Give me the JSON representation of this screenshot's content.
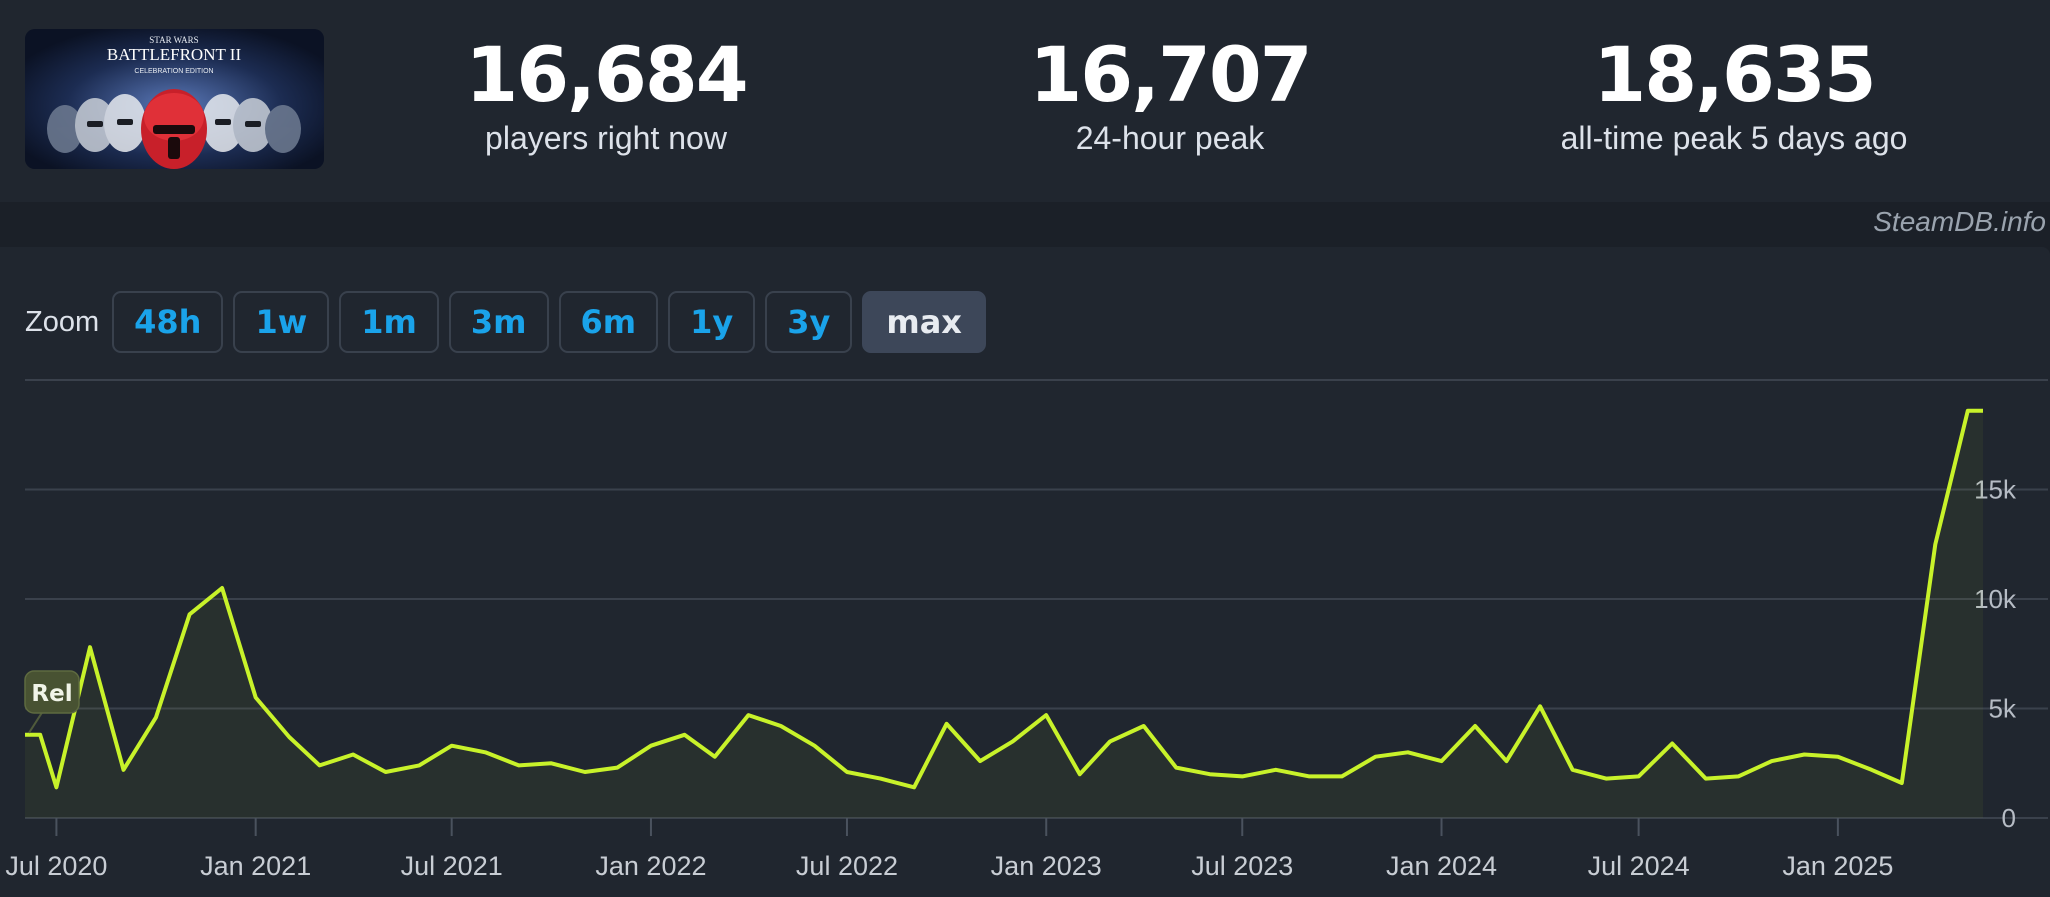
{
  "game": {
    "banner_icon": "game-cover-art",
    "banner_text_top": "STAR WARS",
    "banner_text_main": "BATTLEFRONT II",
    "banner_text_sub": "CELEBRATION EDITION"
  },
  "stats": [
    {
      "value": "16,684",
      "label": "players right now"
    },
    {
      "value": "16,707",
      "label": "24-hour peak"
    },
    {
      "value": "18,635",
      "label": "all-time peak 5 days ago"
    }
  ],
  "credit": "SteamDB.info",
  "zoom": {
    "label": "Zoom",
    "options": [
      "48h",
      "1w",
      "1m",
      "3m",
      "6m",
      "1y",
      "3y",
      "max"
    ],
    "active": "max"
  },
  "colors": {
    "line": "#c8f22a",
    "button_text": "#1aa3ea",
    "background": "#20262f"
  },
  "chart_data": {
    "type": "line",
    "x_tick_labels": [
      "Jul 2020",
      "Jan 2021",
      "Jul 2021",
      "Jan 2022",
      "Jul 2022",
      "Jan 2023",
      "Jul 2023",
      "Jan 2024",
      "Jul 2024",
      "Jan 2025"
    ],
    "y_tick_labels": [
      "0",
      "5k",
      "10k",
      "15k"
    ],
    "ylim": [
      0,
      20000
    ],
    "grid": true,
    "annotation": "Rel",
    "series": [
      {
        "x": [
          "2020-06-02",
          "2020-06-16",
          "2020-07-01",
          "2020-08-01",
          "2020-09-01",
          "2020-10-01",
          "2020-11-01",
          "2020-12-01",
          "2021-01-01",
          "2021-02-01",
          "2021-03-01",
          "2021-04-01",
          "2021-05-01",
          "2021-06-01",
          "2021-07-01",
          "2021-08-01",
          "2021-09-01",
          "2021-10-01",
          "2021-11-01",
          "2021-12-01",
          "2022-01-01",
          "2022-02-01",
          "2022-03-01",
          "2022-04-01",
          "2022-05-01",
          "2022-06-01",
          "2022-07-01",
          "2022-08-01",
          "2022-09-01",
          "2022-10-01",
          "2022-11-01",
          "2022-12-01",
          "2023-01-01",
          "2023-02-01",
          "2023-03-01",
          "2023-04-01",
          "2023-05-01",
          "2023-06-01",
          "2023-07-01",
          "2023-08-01",
          "2023-09-01",
          "2023-10-01",
          "2023-11-01",
          "2023-12-01",
          "2024-01-01",
          "2024-02-01",
          "2024-03-01",
          "2024-04-01",
          "2024-05-01",
          "2024-06-01",
          "2024-07-01",
          "2024-08-01",
          "2024-09-01",
          "2024-10-01",
          "2024-11-01",
          "2024-12-01",
          "2025-01-01",
          "2025-02-01",
          "2025-03-01",
          "2025-04-01",
          "2025-05-01",
          "2025-05-15"
        ],
        "y": [
          3800,
          3800,
          1400,
          7800,
          2200,
          4600,
          9300,
          10500,
          5500,
          3700,
          2400,
          2900,
          2100,
          2400,
          3300,
          3000,
          2400,
          2500,
          2100,
          2300,
          3300,
          3800,
          2800,
          4700,
          4200,
          3300,
          2100,
          1800,
          1400,
          4300,
          2600,
          3500,
          4700,
          2000,
          3500,
          4200,
          2300,
          2000,
          1900,
          2200,
          1900,
          1900,
          2800,
          3000,
          2600,
          4200,
          2600,
          5100,
          2200,
          1800,
          1900,
          3400,
          1800,
          1900,
          2600,
          2900,
          2800,
          2200,
          1600,
          12500,
          18600,
          18600
        ]
      }
    ]
  }
}
